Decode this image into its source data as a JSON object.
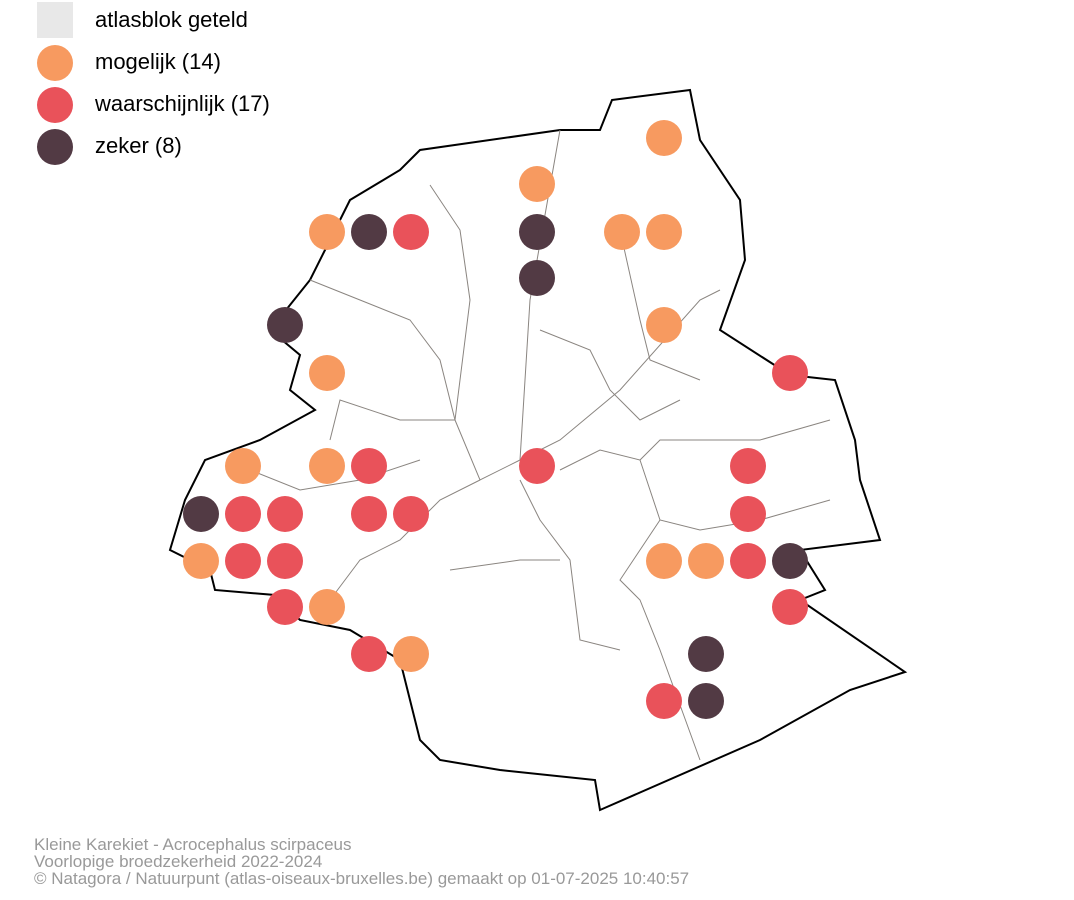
{
  "legend": {
    "items": [
      {
        "label": "atlasblok geteld",
        "color": "#e8e8e8",
        "shape": "square"
      },
      {
        "label": "mogelijk (14)",
        "color": "#f79a60",
        "shape": "circle"
      },
      {
        "label": "waarschijnlijk (17)",
        "color": "#e9525a",
        "shape": "circle"
      },
      {
        "label": "zeker (8)",
        "color": "#523a44",
        "shape": "circle"
      }
    ]
  },
  "footer": {
    "lines": [
      "Kleine Karekiet - Acrocephalus scirpaceus",
      "Voorlopige broedzekerheid 2022-2024",
      "© Natagora / Natuurpunt (atlas-oiseaux-bruxelles.be) gemaakt op 01-07-2025 10:40:57"
    ]
  }
}
